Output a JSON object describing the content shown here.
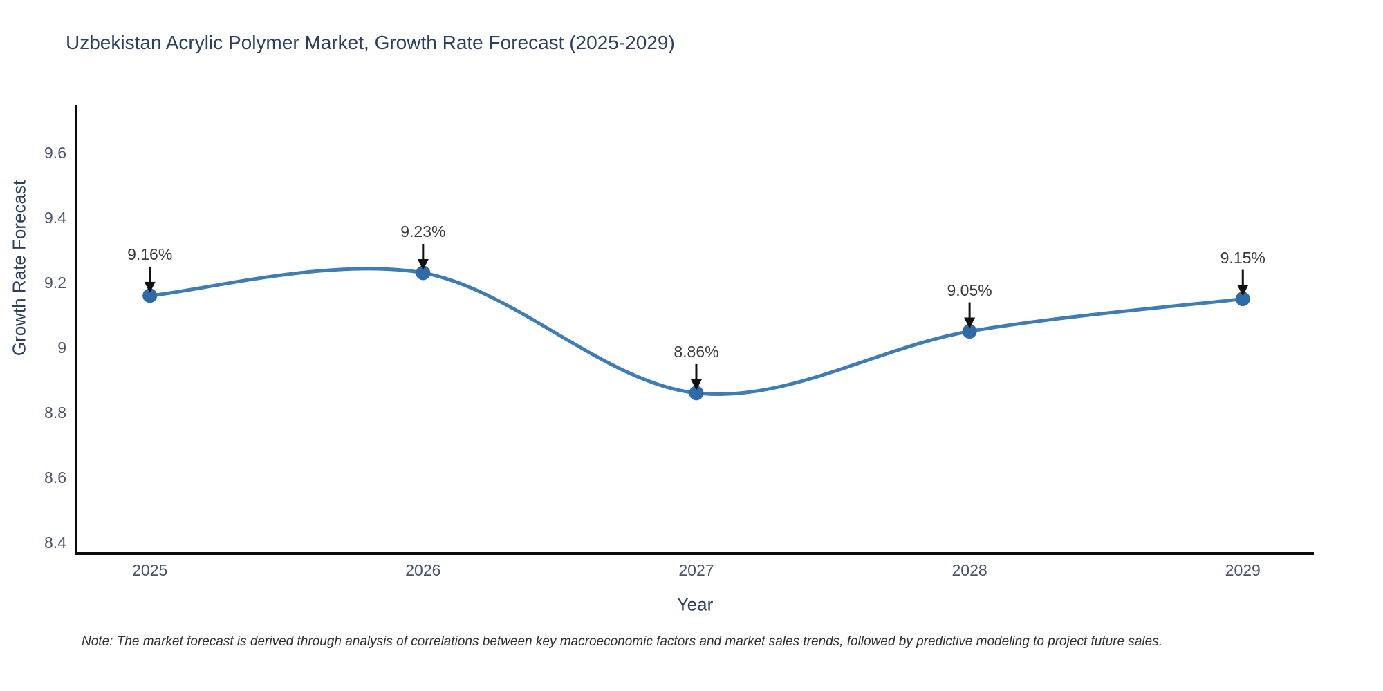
{
  "title": "Uzbekistan Acrylic Polymer Market, Growth Rate Forecast (2025-2029)",
  "note": "Note: The market forecast is derived through analysis of correlations between key macroeconomic factors and market sales trends, followed by predictive modeling to project future sales.",
  "chart_data": {
    "type": "line",
    "line_shape": "spline",
    "title": "Uzbekistan Acrylic Polymer Market, Growth Rate Forecast (2025-2029)",
    "xlabel": "Year",
    "ylabel": "Growth Rate Forecast",
    "x": [
      2025,
      2026,
      2027,
      2028,
      2029
    ],
    "y": [
      9.16,
      9.23,
      8.86,
      9.05,
      9.15
    ],
    "point_labels": [
      "9.16%",
      "9.23%",
      "8.86%",
      "9.05%",
      "9.15%"
    ],
    "xticks": [
      2025,
      2026,
      2027,
      2028,
      2029
    ],
    "xtick_labels": [
      "2025",
      "2026",
      "2027",
      "2028",
      "2029"
    ],
    "yticks": [
      8.4,
      8.6,
      8.8,
      9.0,
      9.2,
      9.4,
      9.6
    ],
    "ytick_labels": [
      "8.4",
      "8.6",
      "8.8",
      "9",
      "9.2",
      "9.4",
      "9.6"
    ],
    "xlim": [
      2024.73,
      2029.26
    ],
    "ylim": [
      8.366,
      9.747
    ],
    "grid": false,
    "legend": false,
    "annotations": "black down arrow from each value label to its marker",
    "colors": {
      "line": "#3e7cb5",
      "marker": "#2e6ba6",
      "axis": "#0b0b0b",
      "arrow": "#111111",
      "title_text": "#2b3f5e",
      "tick_text": "#47536a",
      "annotation_text": "#3b3b3b"
    }
  }
}
